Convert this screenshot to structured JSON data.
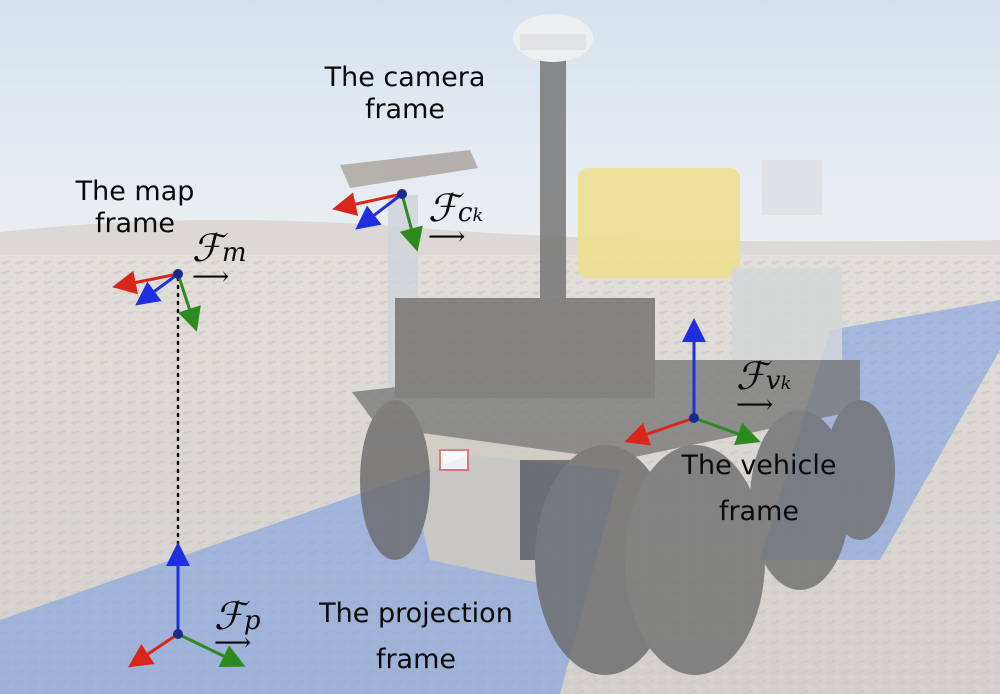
{
  "scene": {
    "description_icon": "planetary-rover-photo-illustration",
    "colors": {
      "x_axis": "#d9261c",
      "y_axis": "#2d8a1e",
      "z_axis": "#1f2fe0",
      "origin": "#1a2a8a",
      "ground_band": "#3f73d6"
    }
  },
  "frames": {
    "map": {
      "label_line1": "The map",
      "label_line2": "frame",
      "symbol": "ℱ",
      "subscript": "m",
      "arrow": "⟶"
    },
    "camera": {
      "label_line1": "The camera",
      "label_line2": "frame",
      "symbol": "ℱ",
      "subscript": "c",
      "subsubscript": "k",
      "arrow": "⟶"
    },
    "vehicle": {
      "label_line1": "The vehicle",
      "label_line2": "frame",
      "symbol": "ℱ",
      "subscript": "v",
      "subsubscript": "k",
      "arrow": "⟶"
    },
    "projection": {
      "label_line1": "The projection",
      "label_line2": "frame",
      "symbol": "ℱ",
      "subscript": "p",
      "arrow": "⟶"
    }
  }
}
